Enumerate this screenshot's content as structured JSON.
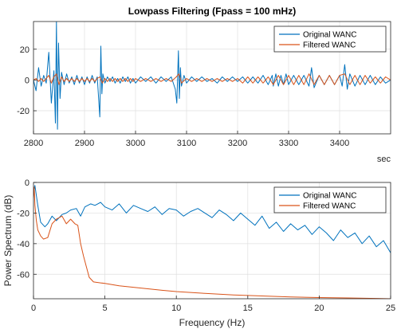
{
  "chart_data": [
    {
      "type": "line",
      "title": "Lowpass Filtering  (Fpass = 100 mHz)",
      "xlabel": "sec",
      "ylabel": "",
      "xlim": [
        2800,
        3500
      ],
      "ylim": [
        -35,
        38
      ],
      "xticks": [
        "2800",
        "2900",
        "3000",
        "3100",
        "3200",
        "3300",
        "3400"
      ],
      "yticks": [
        "20",
        "0",
        "-20"
      ],
      "grid": true,
      "legend_position": "top-right",
      "series": [
        {
          "name": "Original WANC",
          "color": "#0072BD",
          "x": [
            2800,
            2805,
            2810,
            2815,
            2820,
            2825,
            2830,
            2835,
            2840,
            2843,
            2845,
            2847,
            2849,
            2852,
            2855,
            2860,
            2865,
            2870,
            2875,
            2880,
            2885,
            2890,
            2895,
            2900,
            2905,
            2910,
            2915,
            2920,
            2925,
            2930,
            2932,
            2934,
            2936,
            2940,
            2945,
            2950,
            2955,
            2960,
            2965,
            2970,
            2975,
            2980,
            2985,
            2990,
            2995,
            3000,
            3010,
            3020,
            3030,
            3040,
            3050,
            3060,
            3070,
            3078,
            3081,
            3084,
            3086,
            3088,
            3090,
            3095,
            3100,
            3110,
            3120,
            3130,
            3140,
            3150,
            3160,
            3170,
            3180,
            3190,
            3200,
            3210,
            3220,
            3230,
            3240,
            3250,
            3260,
            3268,
            3270,
            3275,
            3280,
            3285,
            3290,
            3295,
            3300,
            3310,
            3320,
            3330,
            3340,
            3345,
            3350,
            3360,
            3370,
            3380,
            3390,
            3400,
            3405,
            3410,
            3415,
            3420,
            3430,
            3440,
            3450,
            3460,
            3470,
            3480,
            3490,
            3500
          ],
          "y": [
            0,
            -7,
            8,
            -4,
            3,
            -2,
            18,
            -15,
            6,
            -28,
            38,
            -32,
            24,
            -12,
            5,
            -3,
            4,
            -2,
            2,
            -3,
            3,
            -2,
            2,
            -3,
            2,
            -2,
            3,
            -2,
            2,
            -24,
            22,
            -9,
            4,
            -2,
            2,
            -1,
            2,
            -2,
            1,
            -2,
            2,
            -1,
            2,
            -2,
            1,
            -2,
            2,
            -1,
            2,
            -2,
            2,
            -1,
            2,
            -6,
            -15,
            19,
            -12,
            8,
            -4,
            3,
            -2,
            2,
            -1,
            2,
            -1,
            1,
            -2,
            2,
            -1,
            2,
            -1,
            2,
            -2,
            2,
            -2,
            3,
            -3,
            3,
            -4,
            4,
            -4,
            3,
            -3,
            4,
            -3,
            3,
            -3,
            3,
            -4,
            8,
            -5,
            3,
            -3,
            3,
            -3,
            3,
            -4,
            10,
            -6,
            4,
            -4,
            3,
            -3,
            3,
            -3,
            2,
            -2,
            0
          ]
        },
        {
          "name": "Filtered WANC",
          "color": "#D95319",
          "x": [
            2800,
            2805,
            2810,
            2815,
            2820,
            2825,
            2830,
            2835,
            2840,
            2845,
            2850,
            2855,
            2860,
            2865,
            2870,
            2875,
            2880,
            2885,
            2890,
            2895,
            2900,
            2905,
            2910,
            2915,
            2920,
            2925,
            2930,
            2935,
            2940,
            2945,
            2950,
            2955,
            2960,
            2965,
            2970,
            2975,
            2980,
            2985,
            2990,
            2995,
            3000,
            3010,
            3020,
            3030,
            3040,
            3050,
            3060,
            3070,
            3080,
            3085,
            3090,
            3100,
            3110,
            3120,
            3130,
            3140,
            3150,
            3160,
            3170,
            3180,
            3190,
            3200,
            3210,
            3220,
            3230,
            3240,
            3250,
            3260,
            3270,
            3280,
            3290,
            3300,
            3310,
            3320,
            3330,
            3340,
            3350,
            3360,
            3370,
            3380,
            3390,
            3400,
            3410,
            3420,
            3430,
            3440,
            3450,
            3460,
            3470,
            3480,
            3490,
            3500
          ],
          "y": [
            0,
            1,
            -1,
            1,
            -1,
            1,
            3,
            -2,
            2,
            4,
            -3,
            2,
            -1,
            1,
            -1,
            1,
            -1,
            1,
            -1,
            1,
            -1,
            1,
            -1,
            1,
            -1,
            1,
            2,
            -2,
            1,
            -1,
            1,
            -1,
            1,
            -1,
            1,
            -1,
            1,
            -1,
            1,
            -1,
            1,
            -1,
            1,
            -1,
            1,
            -1,
            1,
            -1,
            2,
            4,
            -2,
            1,
            -1,
            1,
            -1,
            1,
            -1,
            1,
            -1,
            1,
            -1,
            1,
            -2,
            2,
            -2,
            2,
            -2,
            2,
            -3,
            3,
            -3,
            3,
            -3,
            3,
            -3,
            4,
            -3,
            3,
            -3,
            3,
            -3,
            3,
            4,
            -3,
            3,
            -3,
            3,
            -2,
            2,
            -2,
            2,
            0
          ]
        }
      ]
    },
    {
      "type": "line",
      "title": "",
      "xlabel": "Frequency (Hz)",
      "ylabel": "Power Spectrum (dB)",
      "xlim": [
        0,
        25
      ],
      "ylim": [
        -76,
        0
      ],
      "xticks": [
        "0",
        "5",
        "10",
        "15",
        "20",
        "25"
      ],
      "yticks": [
        "0",
        "-20",
        "-40",
        "-60"
      ],
      "grid": true,
      "legend_position": "top-right",
      "series": [
        {
          "name": "Original WANC",
          "color": "#0072BD",
          "x": [
            0,
            0.1,
            0.3,
            0.5,
            0.8,
            1.0,
            1.3,
            1.6,
            2.0,
            2.3,
            2.6,
            3.0,
            3.3,
            3.6,
            4.0,
            4.3,
            4.7,
            5.0,
            5.5,
            6.0,
            6.5,
            7.0,
            7.5,
            8.0,
            8.5,
            9.0,
            9.5,
            10.0,
            10.5,
            11.0,
            11.5,
            12.0,
            12.5,
            13.0,
            13.5,
            14.0,
            14.5,
            15.0,
            15.5,
            16.0,
            16.5,
            17.0,
            17.5,
            18.0,
            18.5,
            19.0,
            19.5,
            20.0,
            20.5,
            21.0,
            21.5,
            22.0,
            22.5,
            23.0,
            23.5,
            24.0,
            24.5,
            25.0
          ],
          "y": [
            -8,
            -2,
            -15,
            -26,
            -29,
            -27,
            -22,
            -25,
            -21,
            -20,
            -18,
            -17,
            -22,
            -16,
            -14,
            -15,
            -13,
            -16,
            -18,
            -14,
            -20,
            -15,
            -17,
            -19,
            -16,
            -21,
            -17,
            -18,
            -22,
            -19,
            -17,
            -20,
            -23,
            -18,
            -21,
            -25,
            -20,
            -24,
            -28,
            -22,
            -30,
            -26,
            -32,
            -27,
            -31,
            -28,
            -34,
            -29,
            -33,
            -38,
            -31,
            -36,
            -33,
            -40,
            -35,
            -42,
            -38,
            -46
          ]
        },
        {
          "name": "Filtered WANC",
          "color": "#D95319",
          "x": [
            0,
            0.05,
            0.1,
            0.2,
            0.3,
            0.5,
            0.7,
            1.0,
            1.3,
            1.6,
            2.0,
            2.3,
            2.6,
            2.9,
            3.1,
            3.3,
            3.5,
            3.7,
            3.9,
            4.2,
            5.0,
            6.0,
            7.0,
            8.0,
            9.0,
            10.0,
            12.0,
            14.0,
            16.0,
            18.0,
            20.0,
            22.0,
            24.0,
            25.0
          ],
          "y": [
            -10,
            -3,
            -15,
            -25,
            -31,
            -35,
            -37,
            -36,
            -27,
            -24,
            -22,
            -27,
            -24,
            -27,
            -28,
            -40,
            -48,
            -55,
            -62,
            -65,
            -66,
            -67.5,
            -68.5,
            -69.5,
            -70.5,
            -71.3,
            -72.5,
            -73.5,
            -74.2,
            -74.8,
            -75.2,
            -75.5,
            -75.8,
            -76
          ]
        }
      ]
    }
  ]
}
